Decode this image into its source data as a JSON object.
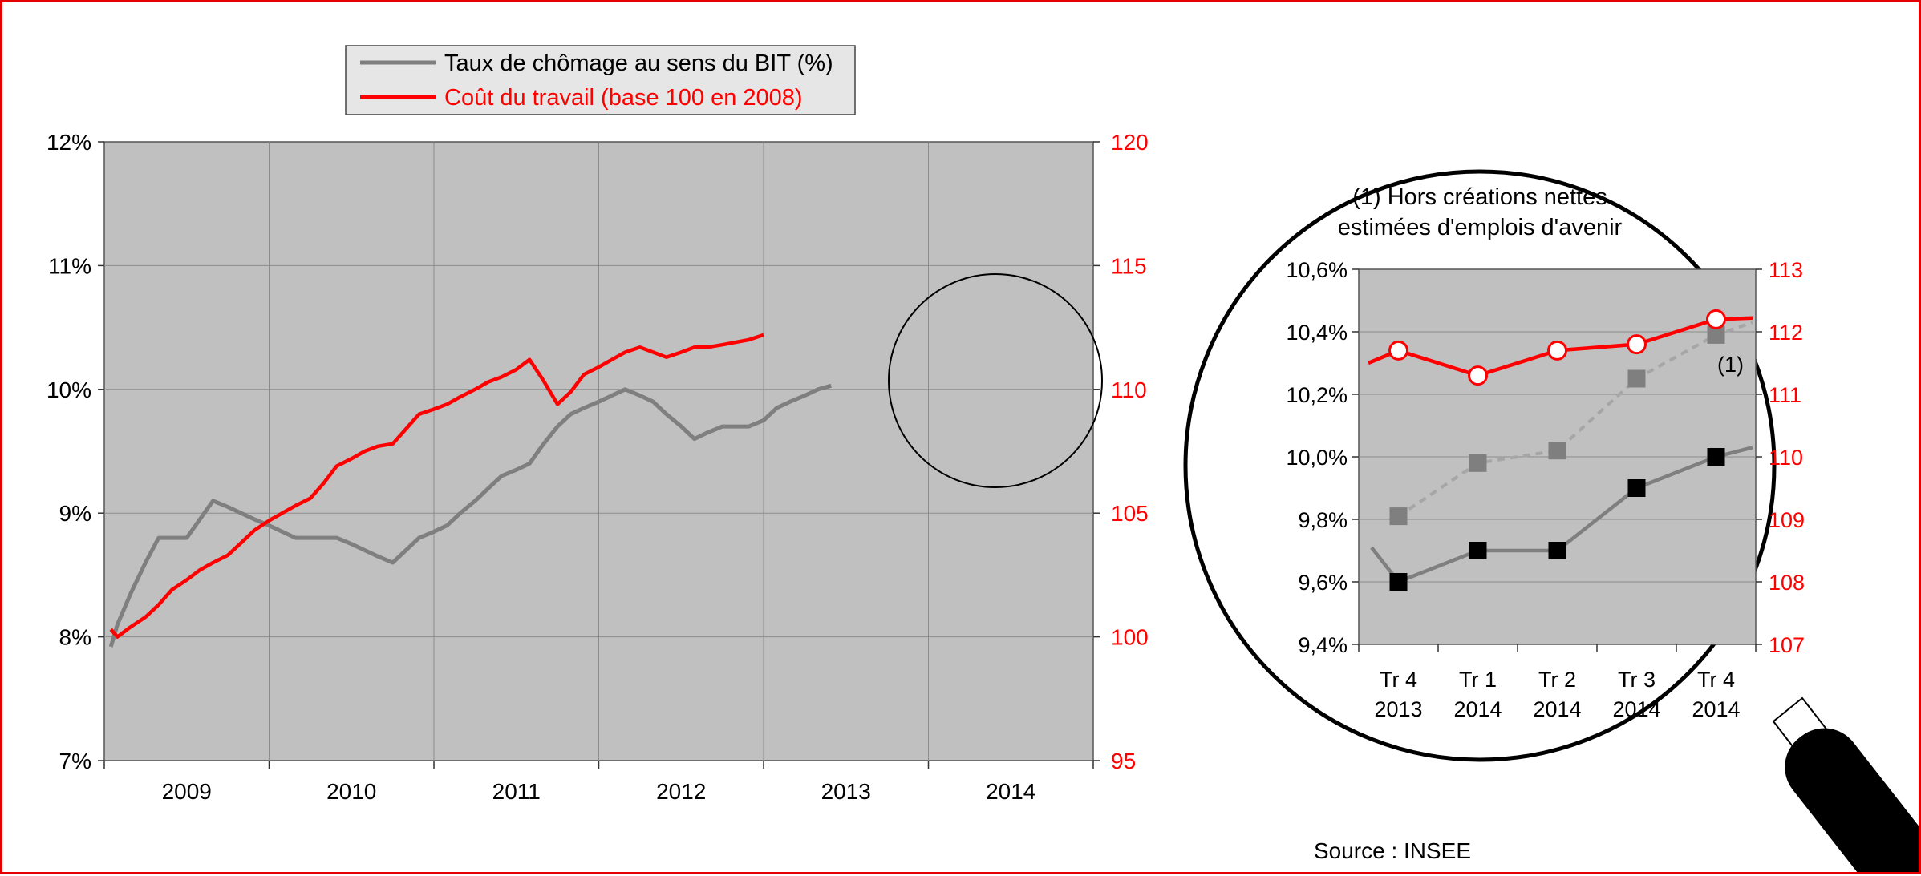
{
  "legend": {
    "items": [
      {
        "label": "Taux de chômage au sens du BIT (%)",
        "color": "#7f7f7f"
      },
      {
        "label": "Coût du travail (base 100 en 2008)",
        "color": "#ff0000"
      }
    ]
  },
  "zoom_title": {
    "line1": "(1) Hors créations nettes",
    "line2": "estimées d'emplois d'avenir"
  },
  "zoom_annotation": "(1)",
  "source": "Source : INSEE",
  "colors": {
    "frame": "#e60000",
    "plot_bg": "#c0c0c0",
    "unemployment": "#7f7f7f",
    "labor_cost": "#ff0000",
    "excl_emplois_avenir": "#a6a6a6"
  },
  "chart_data": [
    {
      "type": "line",
      "x_categories": [
        "2009",
        "2010",
        "2011",
        "2012",
        "2013",
        "2014"
      ],
      "x": [
        2008.96,
        2009.0,
        2009.08,
        2009.17,
        2009.25,
        2009.33,
        2009.42,
        2009.5,
        2009.58,
        2009.67,
        2009.75,
        2009.83,
        2009.92,
        2010.0,
        2010.08,
        2010.17,
        2010.25,
        2010.33,
        2010.42,
        2010.5,
        2010.58,
        2010.67,
        2010.75,
        2010.83,
        2010.92,
        2011.0,
        2011.08,
        2011.17,
        2011.25,
        2011.33,
        2011.42,
        2011.5,
        2011.58,
        2011.67,
        2011.75,
        2011.83,
        2011.92,
        2012.0,
        2012.08,
        2012.17,
        2012.25,
        2012.33,
        2012.42,
        2012.5,
        2012.58,
        2012.67,
        2012.75,
        2012.83,
        2012.92,
        2013.0,
        2013.08,
        2013.17,
        2013.25,
        2013.33,
        2013.42,
        2013.5,
        2013.58,
        2013.67,
        2013.75,
        2013.83,
        2013.92,
        2014.0,
        2014.08,
        2014.17,
        2014.25,
        2014.33,
        2014.42,
        2014.5,
        2014.58,
        2014.67,
        2014.75,
        2014.83,
        2014.9
      ],
      "series": [
        {
          "name": "Taux de chômage au sens du BIT (%)",
          "axis": "left",
          "color": "#7f7f7f",
          "values": [
            7.92,
            8.1,
            8.35,
            8.6,
            8.8,
            8.8,
            8.8,
            8.95,
            9.1,
            9.05,
            9.0,
            8.95,
            8.9,
            8.85,
            8.8,
            8.8,
            8.8,
            8.8,
            8.75,
            8.7,
            8.65,
            8.6,
            8.7,
            8.8,
            8.85,
            8.9,
            9.0,
            9.1,
            9.2,
            9.3,
            9.35,
            9.4,
            9.55,
            9.7,
            9.8,
            9.85,
            9.9,
            9.95,
            10.0,
            9.95,
            9.9,
            9.8,
            9.7,
            9.6,
            9.65,
            9.7,
            9.7,
            9.7,
            9.75,
            9.85,
            9.9,
            9.95,
            10.0,
            10.03,
            null,
            null,
            null,
            null,
            null,
            null,
            null,
            null,
            null,
            null,
            null,
            null,
            null,
            null,
            null,
            null,
            null,
            null,
            null
          ]
        },
        {
          "name": "Coût du travail (base 100 en 2008)",
          "axis": "right",
          "color": "#ff0000",
          "values": [
            100.3,
            100.0,
            100.4,
            100.8,
            101.3,
            101.9,
            102.3,
            102.7,
            103.0,
            103.3,
            103.8,
            104.3,
            104.7,
            105.0,
            105.3,
            105.6,
            106.2,
            106.9,
            107.2,
            107.5,
            107.7,
            107.8,
            108.4,
            109.0,
            109.2,
            109.4,
            109.7,
            110.0,
            110.3,
            110.5,
            110.8,
            111.2,
            110.4,
            109.4,
            109.9,
            110.6,
            110.9,
            111.2,
            111.5,
            111.7,
            111.5,
            111.3,
            111.5,
            111.7,
            111.7,
            111.8,
            111.9,
            112.0,
            112.2,
            null,
            null,
            null,
            null,
            null,
            null,
            null,
            null,
            null,
            null,
            null,
            null,
            null,
            null,
            null,
            null,
            null,
            null,
            null,
            null,
            null,
            null,
            null,
            null
          ]
        }
      ],
      "y_left_ticks": [
        "7%",
        "8%",
        "9%",
        "10%",
        "11%",
        "12%"
      ],
      "ylim_left": [
        7,
        12
      ],
      "y_right_ticks": [
        "95",
        "100",
        "105",
        "110",
        "115",
        "120"
      ],
      "ylim_right": [
        95,
        120
      ],
      "grid": true,
      "legend_position": "top"
    },
    {
      "type": "line",
      "categories": [
        [
          "Tr 4",
          "2013"
        ],
        [
          "Tr 1",
          "2014"
        ],
        [
          "Tr 2",
          "2014"
        ],
        [
          "Tr 3",
          "2014"
        ],
        [
          "Tr 4",
          "2014"
        ]
      ],
      "series": [
        {
          "name": "Taux de chômage au sens du BIT (%)",
          "axis": "left",
          "color": "#7f7f7f",
          "marker": "square",
          "values": [
            9.6,
            9.7,
            9.7,
            9.9,
            10.0
          ]
        },
        {
          "name": "(1)",
          "axis": "left",
          "color": "#a6a6a6",
          "marker": "square",
          "dashed": true,
          "values": [
            9.81,
            9.98,
            10.02,
            10.25,
            10.39
          ]
        },
        {
          "name": "Coût du travail (base 100 en 2008)",
          "axis": "right",
          "color": "#ff0000",
          "marker": "circle",
          "values": [
            111.7,
            111.3,
            111.7,
            111.8,
            112.2
          ]
        }
      ],
      "y_left_ticks": [
        "9,4%",
        "9,6%",
        "9,8%",
        "10,0%",
        "10,2%",
        "10,4%",
        "10,6%"
      ],
      "ylim_left": [
        9.4,
        10.6
      ],
      "y_right_ticks": [
        "107",
        "108",
        "109",
        "110",
        "111",
        "112",
        "113"
      ],
      "ylim_right": [
        107,
        113
      ],
      "grid": true
    }
  ]
}
